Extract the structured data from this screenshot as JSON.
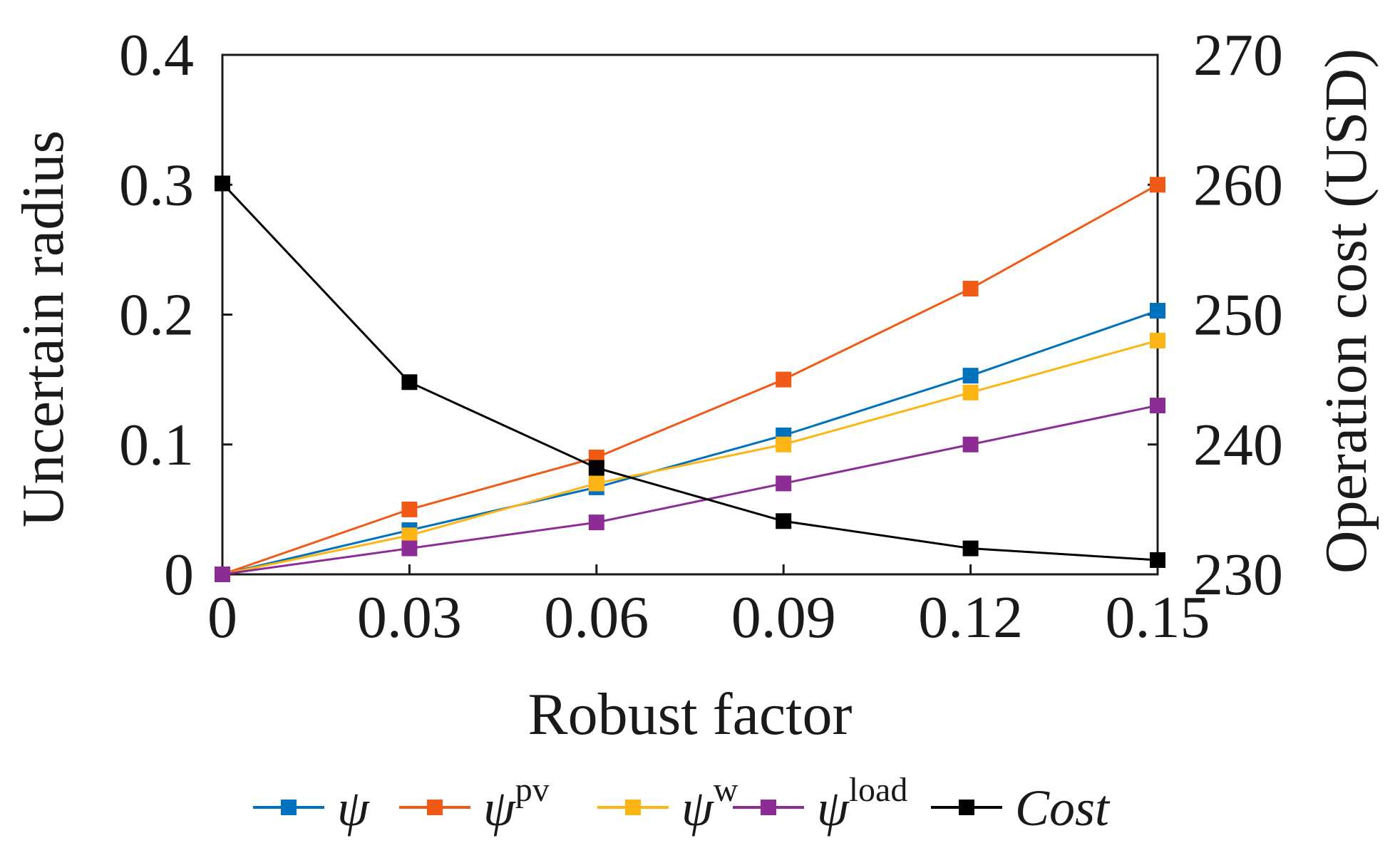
{
  "chart_data": {
    "type": "line",
    "title": "",
    "xlabel": "Robust factor",
    "ylabel": "Uncertain radius",
    "y2label": "Operation cost (USD)",
    "x": [
      0,
      0.03,
      0.06,
      0.09,
      0.12,
      0.15
    ],
    "x_ticks": [
      "0",
      "0.03",
      "0.06",
      "0.09",
      "0.12",
      "0.15"
    ],
    "xlim": [
      0,
      0.15
    ],
    "ylim": [
      0,
      0.4
    ],
    "y_ticks": [
      "0",
      "0.1",
      "0.2",
      "0.3",
      "0.4"
    ],
    "y2lim": [
      230,
      270
    ],
    "y2_ticks": [
      "230",
      "240",
      "250",
      "260",
      "270"
    ],
    "grid": false,
    "legend_position": "bottom",
    "series": [
      {
        "key": "psi",
        "label_main": "ψ",
        "label_sup": "",
        "axis": "left",
        "color": "#0072bd",
        "values": [
          0,
          0.034,
          0.067,
          0.107,
          0.153,
          0.203
        ]
      },
      {
        "key": "psi_pv",
        "label_main": "ψ",
        "label_sup": "pv",
        "axis": "left",
        "color": "#f05a16",
        "values": [
          0,
          0.05,
          0.09,
          0.15,
          0.22,
          0.3
        ]
      },
      {
        "key": "psi_w",
        "label_main": "ψ",
        "label_sup": "w",
        "axis": "left",
        "color": "#fdb515",
        "values": [
          0,
          0.03,
          0.07,
          0.1,
          0.14,
          0.18
        ]
      },
      {
        "key": "psi_load",
        "label_main": "ψ",
        "label_sup": "load",
        "axis": "left",
        "color": "#8e2c96",
        "values": [
          0,
          0.02,
          0.04,
          0.07,
          0.1,
          0.13
        ]
      },
      {
        "key": "cost",
        "label_main": "Cost",
        "label_sup": "",
        "axis": "right",
        "color": "#000000",
        "values": [
          260.1,
          244.8,
          238.2,
          234.1,
          232.0,
          231.1
        ]
      }
    ]
  }
}
